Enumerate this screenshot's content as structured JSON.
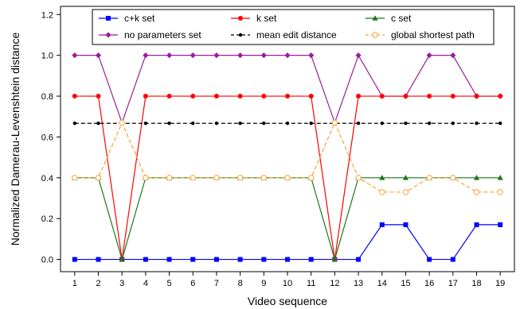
{
  "chart_data": {
    "type": "line",
    "xlabel": "Video sequence",
    "ylabel": "Normalized Damerau-Levenshtein distance",
    "x": [
      1,
      2,
      3,
      4,
      5,
      6,
      7,
      8,
      9,
      10,
      11,
      12,
      13,
      14,
      15,
      16,
      17,
      18,
      19
    ],
    "xticks": [
      1,
      2,
      3,
      4,
      5,
      6,
      7,
      8,
      9,
      10,
      11,
      12,
      13,
      14,
      15,
      16,
      17,
      18,
      19
    ],
    "xlim": [
      0.4,
      19.6
    ],
    "ylim": [
      -0.06,
      1.24
    ],
    "yticks": [
      0.0,
      0.2,
      0.4,
      0.6,
      0.8,
      1.0,
      1.2
    ],
    "yticklabels": [
      "0.0",
      "0.2",
      "0.4",
      "0.6",
      "0.8",
      "1.0",
      "1.2"
    ],
    "grid": false,
    "legend_position": "top",
    "series": [
      {
        "name": "c+k set",
        "color": "#0000ff",
        "marker": "square",
        "dash": "solid",
        "values": [
          0,
          0,
          0,
          0,
          0,
          0,
          0,
          0,
          0,
          0,
          0,
          0,
          0,
          0.17,
          0.17,
          0,
          0,
          0.17,
          0.17
        ]
      },
      {
        "name": "no parameters set",
        "color": "#9b1f9b",
        "marker": "diamond",
        "dash": "solid",
        "values": [
          1,
          1,
          0.67,
          1,
          1,
          1,
          1,
          1,
          1,
          1,
          1,
          0.67,
          1,
          0.8,
          0.8,
          1,
          1,
          0.8,
          0.8
        ]
      },
      {
        "name": "k set",
        "color": "#ff0000",
        "marker": "circle",
        "dash": "solid",
        "values": [
          0.8,
          0.8,
          0,
          0.8,
          0.8,
          0.8,
          0.8,
          0.8,
          0.8,
          0.8,
          0.8,
          0,
          0.8,
          0.8,
          0.8,
          0.8,
          0.8,
          0.8,
          0.8
        ]
      },
      {
        "name": "mean edit distance",
        "color": "#000000",
        "marker": "dot",
        "dash": "dashed",
        "values": [
          0.667,
          0.667,
          0.667,
          0.667,
          0.667,
          0.667,
          0.667,
          0.667,
          0.667,
          0.667,
          0.667,
          0.667,
          0.667,
          0.667,
          0.667,
          0.667,
          0.667,
          0.667,
          0.667
        ]
      },
      {
        "name": "c set",
        "color": "#1a7a1a",
        "marker": "triangle",
        "dash": "solid",
        "values": [
          0.4,
          0.4,
          0,
          0.4,
          0.4,
          0.4,
          0.4,
          0.4,
          0.4,
          0.4,
          0.4,
          0,
          0.4,
          0.4,
          0.4,
          0.4,
          0.4,
          0.4,
          0.4
        ]
      },
      {
        "name": "global shortest path",
        "color": "#ff9f2e",
        "marker": "open-circle",
        "dash": "dashed",
        "values": [
          0.4,
          0.4,
          0.67,
          0.4,
          0.4,
          0.4,
          0.4,
          0.4,
          0.4,
          0.4,
          0.4,
          0.67,
          0.4,
          0.33,
          0.33,
          0.4,
          0.4,
          0.33,
          0.33
        ]
      }
    ]
  }
}
